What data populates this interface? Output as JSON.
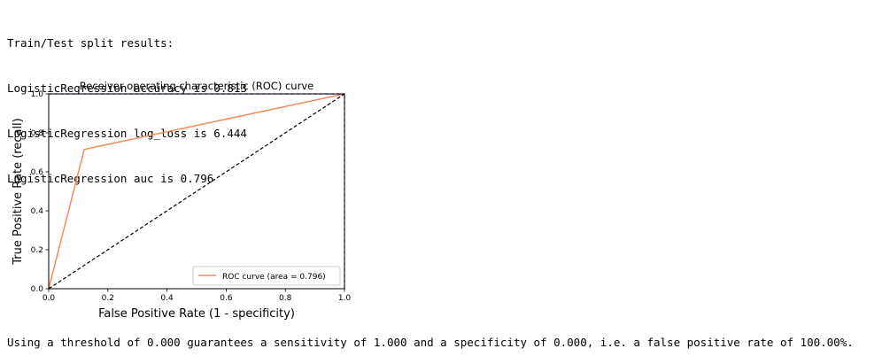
{
  "output": {
    "lines": [
      "Train/Test split results:",
      "LogisticRegression accuracy is 0.813",
      "LogisticRegression log_loss is 6.444",
      "LogisticRegression auc is 0.796"
    ],
    "footer": "Using a threshold of 0.000 guarantees a sensitivity of 1.000 and a specificity of 0.000, i.e. a false positive rate of 100.00%."
  },
  "chart_data": {
    "type": "line",
    "title": "Receiver operating characteristic (ROC) curve",
    "xlabel": "False Positive Rate (1 - specificity)",
    "ylabel": "True Positive Rate (recall)",
    "xlim": [
      0.0,
      1.0
    ],
    "ylim": [
      0.0,
      1.0
    ],
    "xticks": [
      "0.0",
      "0.2",
      "0.4",
      "0.6",
      "0.8",
      "1.0"
    ],
    "yticks": [
      "0.0",
      "0.2",
      "0.4",
      "0.6",
      "0.8",
      "1.0"
    ],
    "grid": false,
    "legend_position": "lower-right",
    "series": [
      {
        "name": "ROC curve (area = 0.796)",
        "color": "#f4895c",
        "style": "solid",
        "x": [
          0.0,
          0.12,
          1.0
        ],
        "y": [
          0.0,
          0.715,
          1.0
        ]
      }
    ],
    "reference_lines": [
      {
        "color": "#000000",
        "style": "dashed",
        "x": [
          0.0,
          1.0
        ],
        "y": [
          0.0,
          1.0
        ]
      },
      {
        "color": "#0000cc",
        "style": "dashed",
        "x": [
          0.0,
          1.0
        ],
        "y": [
          1.0,
          1.0
        ]
      },
      {
        "color": "#0000cc",
        "style": "dashed",
        "x": [
          1.0,
          1.0
        ],
        "y": [
          0.0,
          1.0
        ]
      }
    ]
  }
}
